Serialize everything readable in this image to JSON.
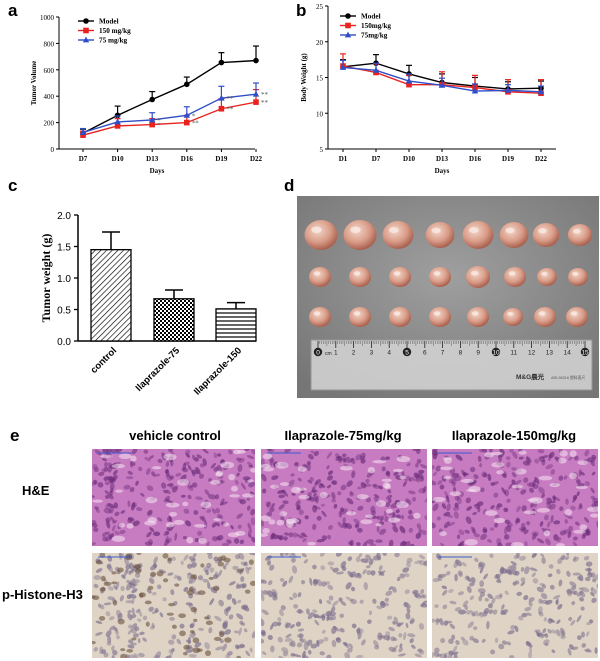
{
  "panels": {
    "a": "a",
    "b": "b",
    "c": "c",
    "d": "d",
    "e": "e"
  },
  "colors": {
    "model": "#000000",
    "dose150": "#e8231f",
    "dose75": "#2f4ec8",
    "he": "#c77bc0",
    "he_light": "#d9a6d6",
    "ihc": "#ded3c4",
    "ihc_dark": "#6a5240",
    "ruler": "#cfcfcf",
    "photo_bg": "#8e8e8e"
  },
  "chart_data": [
    {
      "id": "tumor-volume",
      "type": "line",
      "title": "",
      "xlabel": "Days",
      "ylabel": "Tumor Volume",
      "categories": [
        "D7",
        "D10",
        "D13",
        "D16",
        "D19",
        "D22"
      ],
      "ylim": [
        0,
        1000
      ],
      "yticks": [
        0,
        200,
        400,
        600,
        800,
        1000
      ],
      "legend_position": "top-left",
      "series": [
        {
          "name": "Model",
          "color": "#000000",
          "marker": "circle",
          "values": [
            120,
            255,
            375,
            490,
            655,
            670
          ],
          "errors": [
            30,
            70,
            60,
            55,
            75,
            110
          ],
          "stars": [
            "",
            "",
            "",
            "",
            "",
            ""
          ]
        },
        {
          "name": "150 mg/kg",
          "color": "#e8231f",
          "marker": "square",
          "values": [
            105,
            175,
            185,
            200,
            305,
            355
          ],
          "errors": [
            30,
            55,
            45,
            55,
            75,
            95
          ],
          "stars": [
            "",
            "",
            "*",
            "**",
            "**",
            "**"
          ]
        },
        {
          "name": "75 mg/kg",
          "color": "#2f4ec8",
          "marker": "triangle",
          "values": [
            125,
            205,
            220,
            255,
            385,
            415
          ],
          "errors": [
            30,
            45,
            55,
            65,
            90,
            85
          ],
          "stars": [
            "",
            "",
            "*",
            "*",
            "**",
            "**"
          ]
        }
      ]
    },
    {
      "id": "body-weight",
      "type": "line",
      "title": "",
      "xlabel": "Days",
      "ylabel": "Body Weight (g)",
      "categories": [
        "D1",
        "D7",
        "D10",
        "D13",
        "D16",
        "D19",
        "D22"
      ],
      "ylim": [
        5,
        25
      ],
      "yticks": [
        5,
        10,
        15,
        20,
        25
      ],
      "legend_position": "top-left",
      "series": [
        {
          "name": "Model",
          "color": "#000000",
          "marker": "circle",
          "values": [
            16.5,
            17.0,
            15.5,
            14.3,
            13.8,
            13.4,
            13.5
          ],
          "errors": [
            1.0,
            1.2,
            1.2,
            1.2,
            1.2,
            1.0,
            1.0
          ]
        },
        {
          "name": "150mg/kg",
          "color": "#e8231f",
          "marker": "square",
          "values": [
            16.6,
            15.7,
            14.0,
            14.0,
            13.6,
            13.0,
            12.8
          ],
          "errors": [
            1.7,
            1.2,
            1.3,
            1.8,
            1.7,
            1.7,
            1.9
          ]
        },
        {
          "name": "75mg/kg",
          "color": "#2f4ec8",
          "marker": "triangle",
          "values": [
            16.4,
            16.0,
            14.5,
            13.9,
            13.1,
            13.2,
            13.0
          ],
          "errors": [
            1.0,
            1.0,
            1.0,
            1.0,
            1.0,
            0.8,
            0.8
          ]
        }
      ]
    },
    {
      "id": "tumor-weight",
      "type": "bar",
      "title": "",
      "xlabel": "",
      "ylabel": "Tumor weight (g)",
      "categories": [
        "control",
        "Ilaprazole-75",
        "Ilaprazole-150"
      ],
      "values": [
        1.45,
        0.67,
        0.51
      ],
      "errors": [
        0.28,
        0.14,
        0.1
      ],
      "patterns": [
        "diagonal",
        "checker",
        "horizontal"
      ],
      "ylim": [
        0,
        2.0
      ],
      "yticks": [
        "0.0",
        "0.5",
        "1.0",
        "1.5",
        "2.0"
      ]
    }
  ],
  "photo": {
    "ruler_numbers": [
      "0",
      "1",
      "2",
      "3",
      "4",
      "5",
      "6",
      "7",
      "8",
      "9",
      "10",
      "11",
      "12",
      "13",
      "14",
      "15"
    ],
    "ruler_unit": "cm",
    "ruler_brand": "M&G晨光",
    "ruler_code": "ARL96316  塑料直尺"
  },
  "histology": {
    "columns": [
      "vehicle control",
      "Ilaprazole-75mg/kg",
      "Ilaprazole-150mg/kg"
    ],
    "rows": [
      "H&E",
      "p-Histone-H3"
    ]
  }
}
